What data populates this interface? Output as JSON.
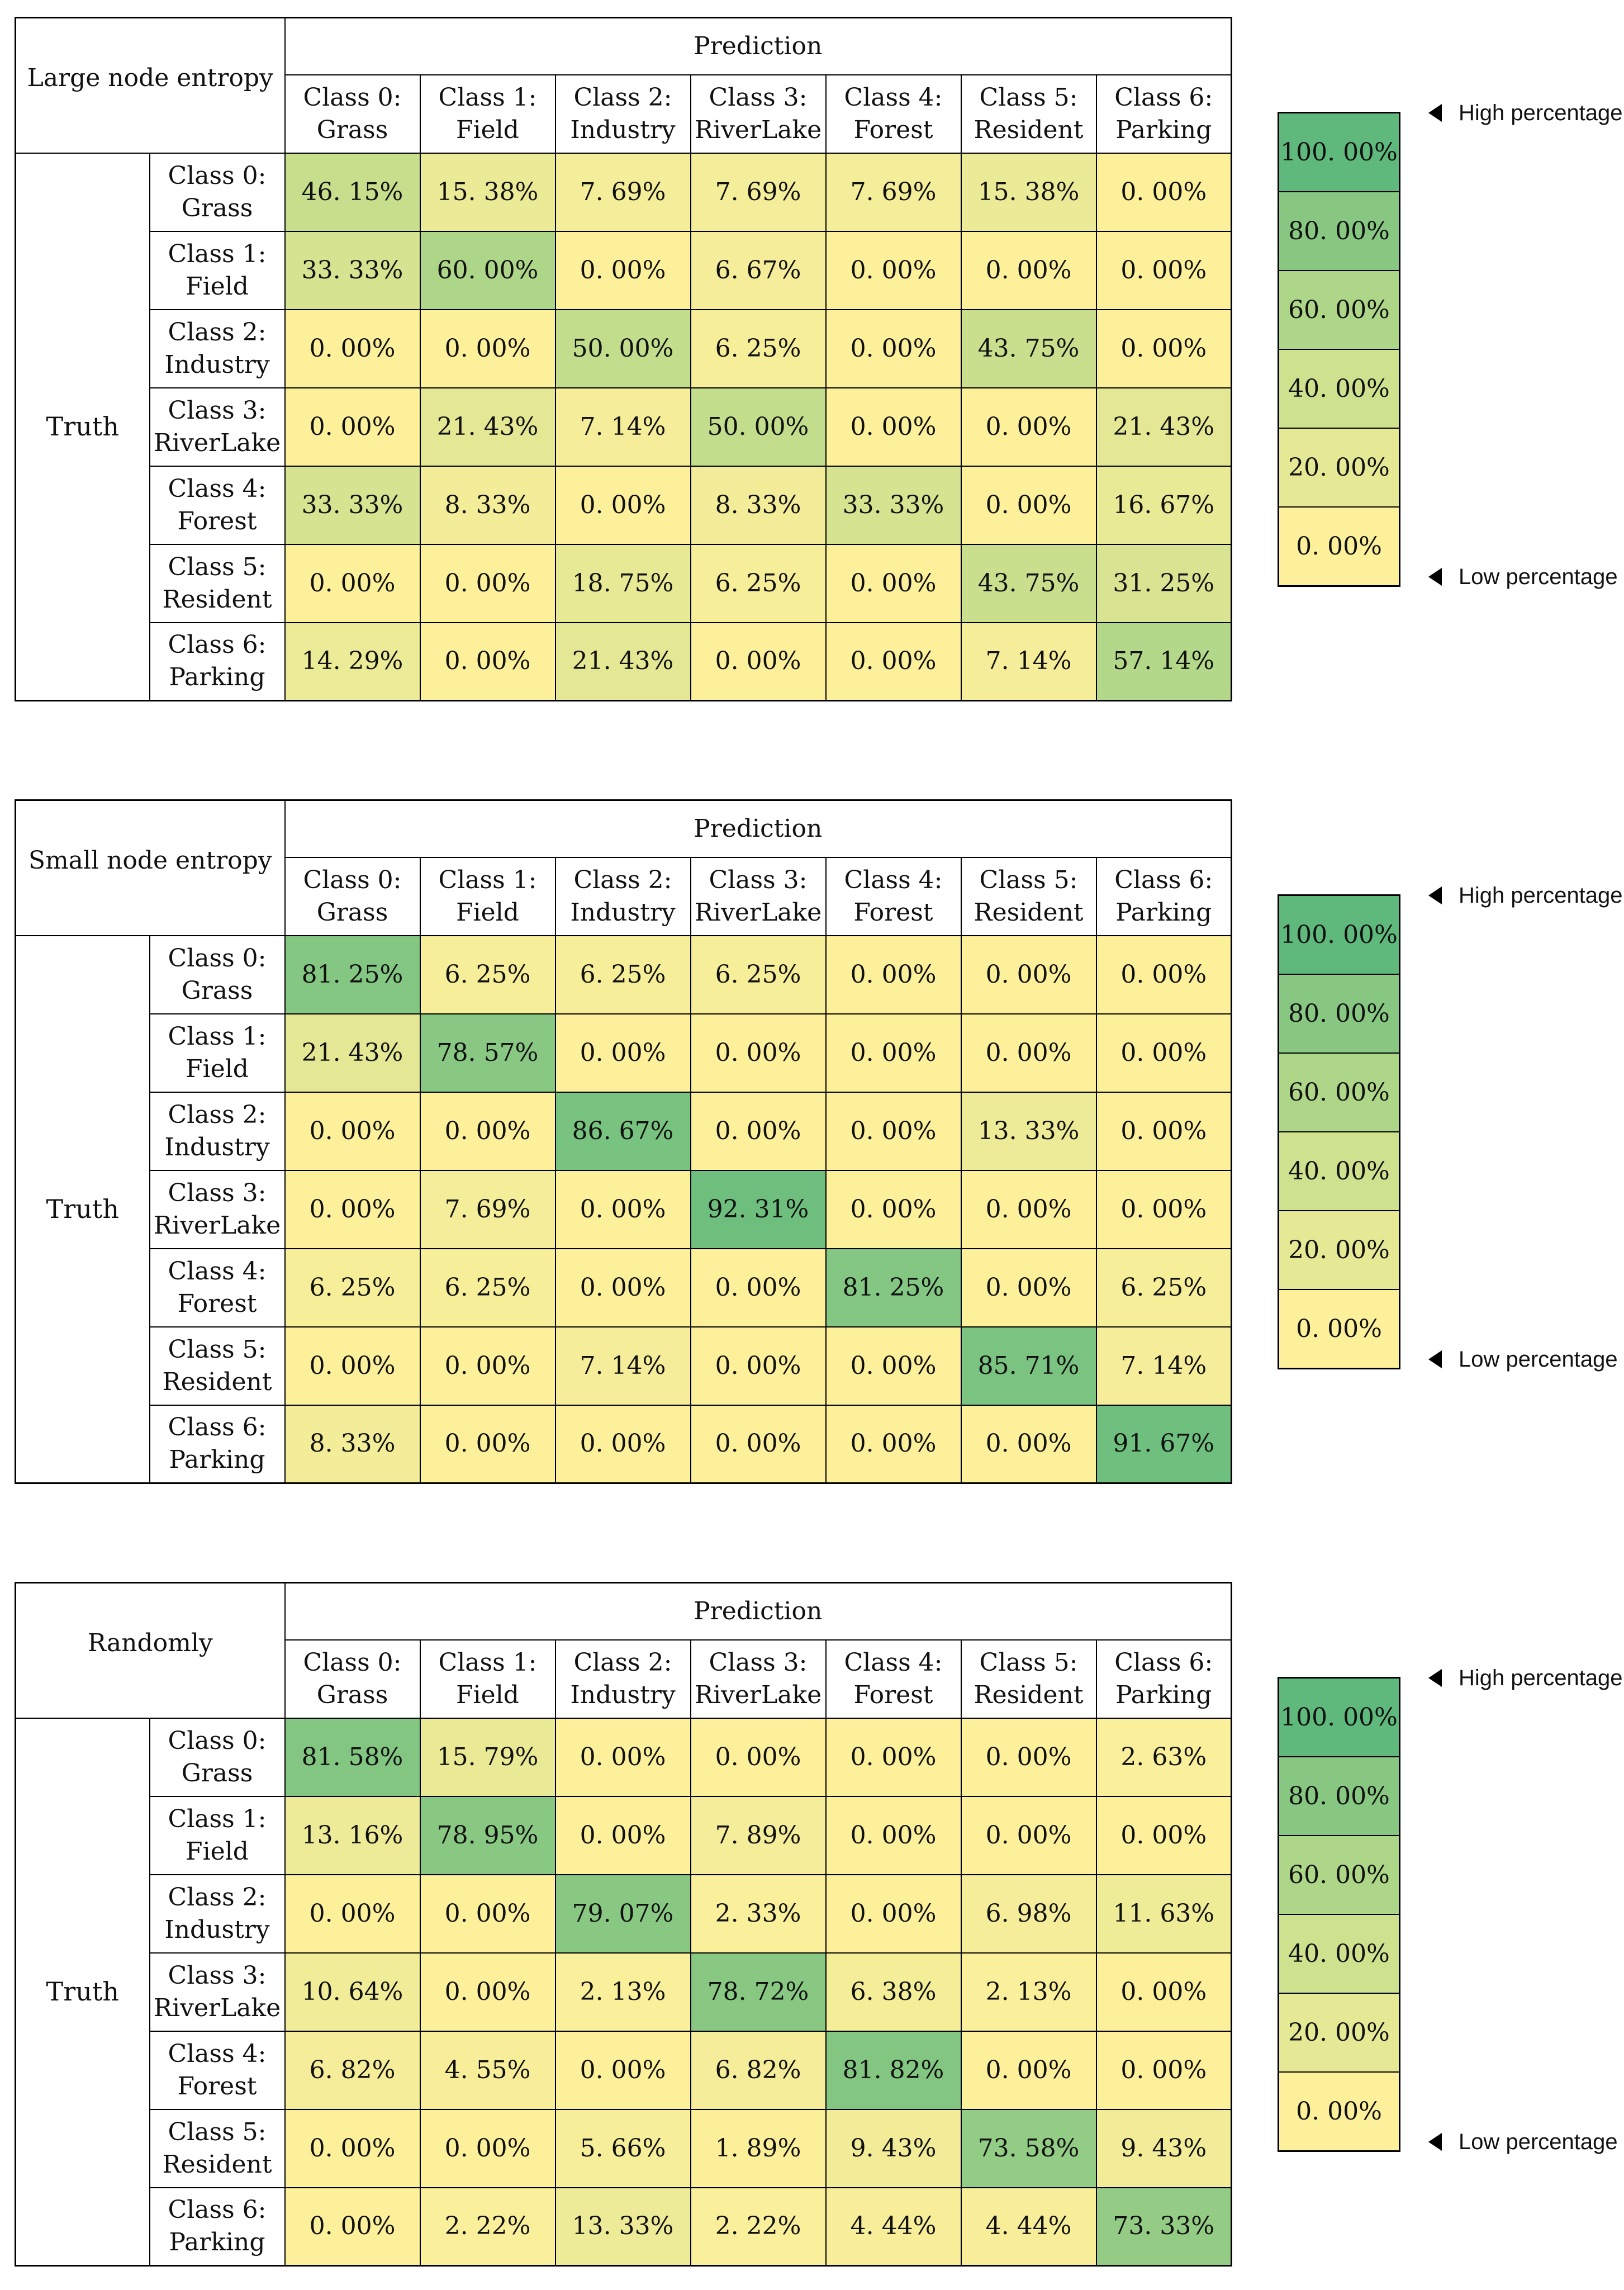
{
  "chart_data": [
    {
      "type": "heatmap",
      "title": "Large node entropy",
      "xlabel": "Prediction",
      "ylabel": "Truth",
      "columns": [
        [
          "Class 0:",
          "Grass"
        ],
        [
          "Class 1:",
          "Field"
        ],
        [
          "Class 2:",
          "Industry"
        ],
        [
          "Class 3:",
          "RiverLake"
        ],
        [
          "Class 4:",
          "Forest"
        ],
        [
          "Class 5:",
          "Resident"
        ],
        [
          "Class 6:",
          "Parking"
        ]
      ],
      "rows": [
        [
          "Class 0:",
          "Grass"
        ],
        [
          "Class 1:",
          "Field"
        ],
        [
          "Class 2:",
          "Industry"
        ],
        [
          "Class 3:",
          "RiverLake"
        ],
        [
          "Class 4:",
          "Forest"
        ],
        [
          "Class 5:",
          "Resident"
        ],
        [
          "Class 6:",
          "Parking"
        ]
      ],
      "labels": [
        [
          "46. 15%",
          "15. 38%",
          "7. 69%",
          "7. 69%",
          "7. 69%",
          "15. 38%",
          "0. 00%"
        ],
        [
          "33. 33%",
          "60. 00%",
          "0. 00%",
          "6. 67%",
          "0. 00%",
          "0. 00%",
          "0. 00%"
        ],
        [
          "0. 00%",
          "0. 00%",
          "50. 00%",
          "6. 25%",
          "0. 00%",
          "43. 75%",
          "0. 00%"
        ],
        [
          "0. 00%",
          "21. 43%",
          "7. 14%",
          "50. 00%",
          "0. 00%",
          "0. 00%",
          "21. 43%"
        ],
        [
          "33. 33%",
          "8. 33%",
          "0. 00%",
          "8. 33%",
          "33. 33%",
          "0. 00%",
          "16. 67%"
        ],
        [
          "0. 00%",
          "0. 00%",
          "18. 75%",
          "6. 25%",
          "0. 00%",
          "43. 75%",
          "31. 25%"
        ],
        [
          "14. 29%",
          "0. 00%",
          "21. 43%",
          "0. 00%",
          "0. 00%",
          "7. 14%",
          "57. 14%"
        ]
      ],
      "values": [
        [
          46.15,
          15.38,
          7.69,
          7.69,
          7.69,
          15.38,
          0.0
        ],
        [
          33.33,
          60.0,
          0.0,
          6.67,
          0.0,
          0.0,
          0.0
        ],
        [
          0.0,
          0.0,
          50.0,
          6.25,
          0.0,
          43.75,
          0.0
        ],
        [
          0.0,
          21.43,
          7.14,
          50.0,
          0.0,
          0.0,
          21.43
        ],
        [
          33.33,
          8.33,
          0.0,
          8.33,
          33.33,
          0.0,
          16.67
        ],
        [
          0.0,
          0.0,
          18.75,
          6.25,
          0.0,
          43.75,
          31.25
        ],
        [
          14.29,
          0.0,
          21.43,
          0.0,
          0.0,
          7.14,
          57.14
        ]
      ],
      "colorbar": [
        "100. 00%",
        "80. 00%",
        "60. 00%",
        "40. 00%",
        "20. 00%",
        "0. 00%"
      ],
      "colorbar_high": "High percentage",
      "colorbar_low": "Low percentage"
    },
    {
      "type": "heatmap",
      "title": "Small node entropy",
      "xlabel": "Prediction",
      "ylabel": "Truth",
      "columns": [
        [
          "Class 0:",
          "Grass"
        ],
        [
          "Class 1:",
          "Field"
        ],
        [
          "Class 2:",
          "Industry"
        ],
        [
          "Class 3:",
          "RiverLake"
        ],
        [
          "Class 4:",
          "Forest"
        ],
        [
          "Class 5:",
          "Resident"
        ],
        [
          "Class 6:",
          "Parking"
        ]
      ],
      "rows": [
        [
          "Class 0:",
          "Grass"
        ],
        [
          "Class 1:",
          "Field"
        ],
        [
          "Class 2:",
          "Industry"
        ],
        [
          "Class 3:",
          "RiverLake"
        ],
        [
          "Class 4:",
          "Forest"
        ],
        [
          "Class 5:",
          "Resident"
        ],
        [
          "Class 6:",
          "Parking"
        ]
      ],
      "labels": [
        [
          "81. 25%",
          "6. 25%",
          "6. 25%",
          "6. 25%",
          "0. 00%",
          "0. 00%",
          "0. 00%"
        ],
        [
          "21. 43%",
          "78. 57%",
          "0. 00%",
          "0. 00%",
          "0. 00%",
          "0. 00%",
          "0. 00%"
        ],
        [
          "0. 00%",
          "0. 00%",
          "86. 67%",
          "0. 00%",
          "0. 00%",
          "13. 33%",
          "0. 00%"
        ],
        [
          "0. 00%",
          "7. 69%",
          "0. 00%",
          "92. 31%",
          "0. 00%",
          "0. 00%",
          "0. 00%"
        ],
        [
          "6. 25%",
          "6. 25%",
          "0. 00%",
          "0. 00%",
          "81. 25%",
          "0. 00%",
          "6. 25%"
        ],
        [
          "0. 00%",
          "0. 00%",
          "7. 14%",
          "0. 00%",
          "0. 00%",
          "85. 71%",
          "7. 14%"
        ],
        [
          "8. 33%",
          "0. 00%",
          "0. 00%",
          "0. 00%",
          "0. 00%",
          "0. 00%",
          "91. 67%"
        ]
      ],
      "values": [
        [
          81.25,
          6.25,
          6.25,
          6.25,
          0.0,
          0.0,
          0.0
        ],
        [
          21.43,
          78.57,
          0.0,
          0.0,
          0.0,
          0.0,
          0.0
        ],
        [
          0.0,
          0.0,
          86.67,
          0.0,
          0.0,
          13.33,
          0.0
        ],
        [
          0.0,
          7.69,
          0.0,
          92.31,
          0.0,
          0.0,
          0.0
        ],
        [
          6.25,
          6.25,
          0.0,
          0.0,
          81.25,
          0.0,
          6.25
        ],
        [
          0.0,
          0.0,
          7.14,
          0.0,
          0.0,
          85.71,
          7.14
        ],
        [
          8.33,
          0.0,
          0.0,
          0.0,
          0.0,
          0.0,
          91.67
        ]
      ],
      "colorbar": [
        "100. 00%",
        "80. 00%",
        "60. 00%",
        "40. 00%",
        "20. 00%",
        "0. 00%"
      ],
      "colorbar_high": "High percentage",
      "colorbar_low": "Low percentage"
    },
    {
      "type": "heatmap",
      "title": "Randomly",
      "xlabel": "Prediction",
      "ylabel": "Truth",
      "columns": [
        [
          "Class 0:",
          "Grass"
        ],
        [
          "Class 1:",
          "Field"
        ],
        [
          "Class 2:",
          "Industry"
        ],
        [
          "Class 3:",
          "RiverLake"
        ],
        [
          "Class 4:",
          "Forest"
        ],
        [
          "Class 5:",
          "Resident"
        ],
        [
          "Class 6:",
          "Parking"
        ]
      ],
      "rows": [
        [
          "Class 0:",
          "Grass"
        ],
        [
          "Class 1:",
          "Field"
        ],
        [
          "Class 2:",
          "Industry"
        ],
        [
          "Class 3:",
          "RiverLake"
        ],
        [
          "Class 4:",
          "Forest"
        ],
        [
          "Class 5:",
          "Resident"
        ],
        [
          "Class 6:",
          "Parking"
        ]
      ],
      "labels": [
        [
          "81. 58%",
          "15. 79%",
          "0. 00%",
          "0. 00%",
          "0. 00%",
          "0. 00%",
          "2. 63%"
        ],
        [
          "13. 16%",
          "78. 95%",
          "0. 00%",
          "7. 89%",
          "0. 00%",
          "0. 00%",
          "0. 00%"
        ],
        [
          "0. 00%",
          "0. 00%",
          "79. 07%",
          "2. 33%",
          "0. 00%",
          "6. 98%",
          "11. 63%"
        ],
        [
          "10. 64%",
          "0. 00%",
          "2. 13%",
          "78. 72%",
          "6. 38%",
          "2. 13%",
          "0. 00%"
        ],
        [
          "6. 82%",
          "4. 55%",
          "0. 00%",
          "6. 82%",
          "81. 82%",
          "0. 00%",
          "0. 00%"
        ],
        [
          "0. 00%",
          "0. 00%",
          "5. 66%",
          "1. 89%",
          "9. 43%",
          "73. 58%",
          "9. 43%"
        ],
        [
          "0. 00%",
          "2. 22%",
          "13. 33%",
          "2. 22%",
          "4. 44%",
          "4. 44%",
          "73. 33%"
        ]
      ],
      "values": [
        [
          81.58,
          15.79,
          0.0,
          0.0,
          0.0,
          0.0,
          2.63
        ],
        [
          13.16,
          78.95,
          0.0,
          7.89,
          0.0,
          0.0,
          0.0
        ],
        [
          0.0,
          0.0,
          79.07,
          2.33,
          0.0,
          6.98,
          11.63
        ],
        [
          10.64,
          0.0,
          2.13,
          78.72,
          6.38,
          2.13,
          0.0
        ],
        [
          6.82,
          4.55,
          0.0,
          6.82,
          81.82,
          0.0,
          0.0
        ],
        [
          0.0,
          0.0,
          5.66,
          1.89,
          9.43,
          73.58,
          9.43
        ],
        [
          0.0,
          2.22,
          13.33,
          2.22,
          4.44,
          4.44,
          73.33
        ]
      ],
      "colorbar": [
        "100. 00%",
        "80. 00%",
        "60. 00%",
        "40. 00%",
        "20. 00%",
        "0. 00%"
      ],
      "colorbar_high": "High percentage",
      "colorbar_low": "Low percentage"
    }
  ],
  "colors": {
    "low": "#fdf09b",
    "mid": "#c2dd8c",
    "high": "#5fb97c",
    "border": "#000000"
  }
}
